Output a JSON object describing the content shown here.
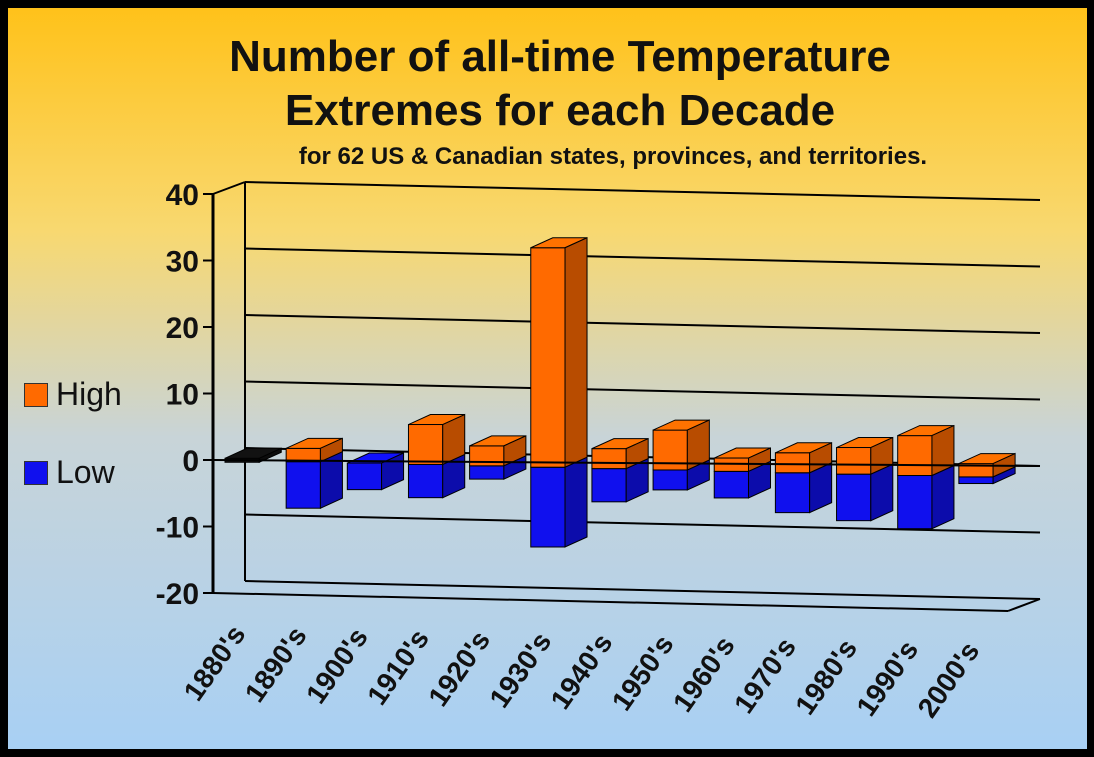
{
  "chart_data": {
    "type": "bar",
    "title": "Number of all-time Temperature",
    "title_line2": "Extremes for each Decade",
    "subtitle": "for 62 US & Canadian states, provinces, and territories.",
    "categories": [
      "1880's",
      "1890's",
      "1900's",
      "1910's",
      "1920's",
      "1930's",
      "1940's",
      "1950's",
      "1960's",
      "1970's",
      "1980's",
      "1990's",
      "2000's"
    ],
    "series": [
      {
        "name": "High",
        "color": "#ff6a00",
        "values": [
          0,
          2,
          0,
          6,
          3,
          33,
          3,
          6,
          2,
          3,
          4,
          6,
          2
        ]
      },
      {
        "name": "Low",
        "color": "#1010ee",
        "values": [
          0,
          -7,
          -4,
          -5,
          -2,
          -12,
          -5,
          -3,
          -4,
          -6,
          -7,
          -8,
          -1
        ]
      }
    ],
    "ylim": [
      -20,
      40
    ],
    "yticks": [
      "40",
      "30",
      "20",
      "10",
      "0",
      "-10",
      "-20"
    ],
    "grid": true,
    "legend_position": "left"
  }
}
